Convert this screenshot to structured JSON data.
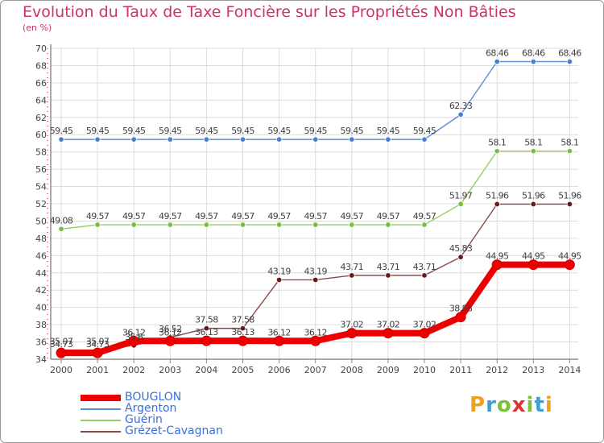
{
  "header": {
    "title": "Evolution du Taux de Taxe Foncière sur les Propriétés Non Bâties",
    "subtitle": "(en %)"
  },
  "logo": {
    "letters": [
      "P",
      "r",
      "o",
      "x",
      "i",
      "t",
      "i"
    ],
    "colors": [
      "#f0a020",
      "#3aa0d8",
      "#7cc13a",
      "#e03030",
      "#7cc13a",
      "#3aa0d8",
      "#f0a020"
    ]
  },
  "chart_data": {
    "type": "line",
    "title": "Evolution du Taux de Taxe Foncière sur les Propriétés Non Bâties",
    "ylabel": "(en %)",
    "xlabel": "",
    "ylim": [
      34,
      70
    ],
    "yticks": [
      34,
      36,
      38,
      40,
      42,
      44,
      46,
      48,
      50,
      52,
      54,
      56,
      58,
      60,
      62,
      64,
      66,
      68,
      70
    ],
    "x": [
      "2000",
      "2001",
      "2002",
      "2003",
      "2004",
      "2005",
      "2006",
      "2007",
      "2008",
      "2009",
      "2010",
      "2011",
      "2012",
      "2013",
      "2014"
    ],
    "grid": true,
    "series": [
      {
        "name": "Argenton",
        "color": "#5b8fd0",
        "marker": "#4a7fd0",
        "values": [
          59.45,
          59.45,
          59.45,
          59.45,
          59.45,
          59.45,
          59.45,
          59.45,
          59.45,
          59.45,
          59.45,
          62.33,
          68.46,
          68.46,
          68.46
        ],
        "labels": [
          "59.45",
          "59.45",
          "59.45",
          "59.45",
          "59.45",
          "59.45",
          "59.45",
          "59.45",
          "59.45",
          "59.45",
          "59.45",
          "62.33",
          "68.46",
          "68.46",
          "68.46"
        ]
      },
      {
        "name": "Guérin",
        "color": "#90d060",
        "marker": "#78c040",
        "values": [
          49.08,
          49.57,
          49.57,
          49.57,
          49.57,
          49.57,
          49.57,
          49.57,
          49.57,
          49.57,
          49.57,
          51.97,
          58.1,
          58.1,
          58.1
        ],
        "labels": [
          "49.08",
          "49.57",
          "49.57",
          "49.57",
          "49.57",
          "49.57",
          "49.57",
          "49.57",
          "49.57",
          "49.57",
          "49.57",
          "51.97",
          "58.1",
          "58.1",
          "58.1"
        ]
      },
      {
        "name": "Grézet-Cavagnan",
        "color": "#8a4a4a",
        "marker": "#6a1a1a",
        "values": [
          35.07,
          35.07,
          35.6,
          36.52,
          37.58,
          37.58,
          43.19,
          43.19,
          43.71,
          43.71,
          43.71,
          45.83,
          51.96,
          51.96,
          51.96
        ],
        "labels": [
          "35.07",
          "35.07",
          "35.6",
          "36.52",
          "37.58",
          "37.58",
          "43.19",
          "43.19",
          "43.71",
          "43.71",
          "43.71",
          "45.83",
          "51.96",
          "51.96",
          "51.96"
        ]
      },
      {
        "name": "BOUGLON",
        "color": "#ee0000",
        "marker": "#ee0000",
        "values": [
          34.73,
          34.73,
          36.12,
          36.12,
          36.13,
          36.13,
          36.12,
          36.12,
          37.02,
          37.02,
          37.02,
          38.88,
          44.95,
          44.95,
          44.95
        ],
        "labels": [
          "34.73",
          "34.73",
          "36.12",
          "36.12",
          "36.13",
          "36.13",
          "36.12",
          "36.12",
          "37.02",
          "37.02",
          "37.02",
          "38.88",
          "44.95",
          "44.95",
          "44.95"
        ]
      }
    ],
    "legend": [
      {
        "name": "BOUGLON",
        "color": "#ee0000"
      },
      {
        "name": "Argenton",
        "color": "#5b8fd0"
      },
      {
        "name": "Guérin",
        "color": "#90d060"
      },
      {
        "name": "Grézet-Cavagnan",
        "color": "#8a4a4a"
      }
    ],
    "legend_position": "bottom-left"
  }
}
